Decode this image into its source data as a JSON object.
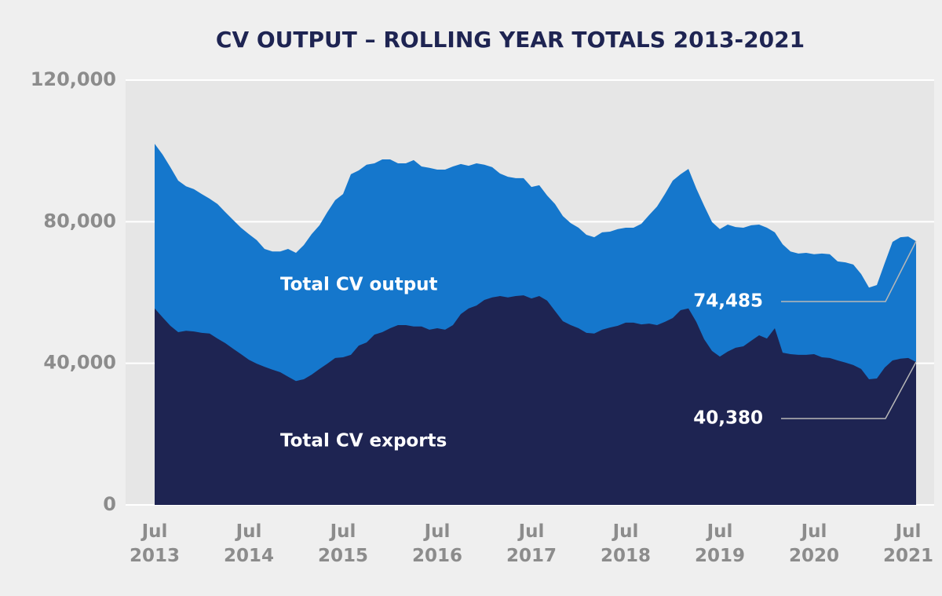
{
  "chart_data": {
    "type": "area",
    "title": "CV OUTPUT – ROLLING YEAR TOTALS 2013-2021",
    "categories": [
      "Jul 2013",
      null,
      null,
      null,
      null,
      null,
      null,
      null,
      null,
      null,
      null,
      null,
      "Jul 2014",
      null,
      null,
      null,
      null,
      null,
      null,
      null,
      null,
      null,
      null,
      null,
      "Jul 2015",
      null,
      null,
      null,
      null,
      null,
      null,
      null,
      null,
      null,
      null,
      null,
      "Jul 2016",
      null,
      null,
      null,
      null,
      null,
      null,
      null,
      null,
      null,
      null,
      null,
      "Jul 2017",
      null,
      null,
      null,
      null,
      null,
      null,
      null,
      null,
      null,
      null,
      null,
      "Jul 2018",
      null,
      null,
      null,
      null,
      null,
      null,
      null,
      null,
      null,
      null,
      null,
      "Jul 2019",
      null,
      null,
      null,
      null,
      null,
      null,
      null,
      null,
      null,
      null,
      null,
      "Jul 2020",
      null,
      null,
      null,
      null,
      null,
      null,
      null,
      null,
      null,
      null,
      null,
      "Jul 2021",
      null
    ],
    "series": [
      {
        "name": "Total CV output",
        "color": "#1577cc",
        "values": [
          102000,
          99000,
          95400,
          91600,
          90000,
          89200,
          87800,
          86500,
          85000,
          82700,
          80500,
          78300,
          76500,
          74800,
          72300,
          71600,
          71600,
          72300,
          71200,
          73400,
          76500,
          79000,
          82700,
          86100,
          87800,
          93400,
          94500,
          96100,
          96500,
          97600,
          97600,
          96500,
          96500,
          97400,
          95600,
          95200,
          94700,
          94700,
          95600,
          96300,
          95800,
          96500,
          96100,
          95400,
          93600,
          92700,
          92300,
          92300,
          89800,
          90300,
          87400,
          85000,
          81600,
          79600,
          78300,
          76300,
          75600,
          77000,
          77200,
          77900,
          78300,
          78300,
          79400,
          81900,
          84300,
          87800,
          91600,
          93400,
          94900,
          89400,
          84500,
          79900,
          77900,
          79200,
          78500,
          78300,
          79000,
          79200,
          78300,
          77000,
          73600,
          71600,
          71000,
          71200,
          70800,
          71000,
          70800,
          68800,
          68500,
          67900,
          65200,
          61400,
          62100,
          68300,
          74300,
          75600,
          75800,
          74485
        ],
        "value_labels": [
          null,
          null,
          null,
          null,
          null,
          null,
          null,
          null,
          null,
          null,
          null,
          null,
          null,
          null,
          null,
          null,
          null,
          null,
          null,
          null,
          null,
          null,
          null,
          null,
          null,
          null,
          null,
          null,
          null,
          null,
          null,
          null,
          null,
          null,
          null,
          null,
          null,
          null,
          null,
          null,
          null,
          null,
          null,
          null,
          null,
          null,
          null,
          null,
          null,
          null,
          null,
          null,
          null,
          null,
          null,
          null,
          null,
          null,
          null,
          null,
          null,
          null,
          null,
          null,
          null,
          null,
          null,
          null,
          null,
          null,
          null,
          null,
          null,
          null,
          null,
          null,
          null,
          null,
          null,
          null,
          null,
          null,
          null,
          null,
          null,
          null,
          null,
          null,
          null,
          null,
          null,
          null,
          null,
          null,
          null,
          null,
          null,
          "74,485"
        ]
      },
      {
        "name": "Total CV exports",
        "color": "#1e2452",
        "values": [
          55500,
          53000,
          50600,
          48800,
          49200,
          49000,
          48600,
          48400,
          47000,
          45700,
          44100,
          42600,
          41000,
          39900,
          39000,
          38200,
          37500,
          36200,
          35000,
          35500,
          36800,
          38400,
          39900,
          41500,
          41700,
          42400,
          45000,
          45900,
          48100,
          48800,
          49900,
          50800,
          50800,
          50400,
          50400,
          49500,
          49900,
          49500,
          50800,
          53900,
          55500,
          56300,
          57900,
          58600,
          59000,
          58600,
          59000,
          59200,
          58300,
          59000,
          57700,
          54800,
          51900,
          50800,
          49900,
          48600,
          48400,
          49500,
          50100,
          50600,
          51500,
          51500,
          51000,
          51200,
          50800,
          51700,
          52800,
          55000,
          55500,
          51700,
          46800,
          43500,
          41900,
          43300,
          44400,
          44800,
          46400,
          47900,
          47000,
          49900,
          43000,
          42600,
          42400,
          42400,
          42600,
          41700,
          41500,
          40800,
          40200,
          39500,
          38400,
          35500,
          35700,
          38800,
          40800,
          41300,
          41500,
          40380
        ],
        "value_labels": [
          null,
          null,
          null,
          null,
          null,
          null,
          null,
          null,
          null,
          null,
          null,
          null,
          null,
          null,
          null,
          null,
          null,
          null,
          null,
          null,
          null,
          null,
          null,
          null,
          null,
          null,
          null,
          null,
          null,
          null,
          null,
          null,
          null,
          null,
          null,
          null,
          null,
          null,
          null,
          null,
          null,
          null,
          null,
          null,
          null,
          null,
          null,
          null,
          null,
          null,
          null,
          null,
          null,
          null,
          null,
          null,
          null,
          null,
          null,
          null,
          null,
          null,
          null,
          null,
          null,
          null,
          null,
          null,
          null,
          null,
          null,
          null,
          null,
          null,
          null,
          null,
          null,
          null,
          null,
          null,
          null,
          null,
          null,
          null,
          null,
          null,
          null,
          null,
          null,
          null,
          null,
          null,
          null,
          null,
          null,
          null,
          null,
          "40,380"
        ]
      }
    ],
    "ylim": [
      0,
      120000
    ],
    "yticks": [
      0,
      {
        "value": 40000,
        "label": "40,000"
      },
      {
        "value": 80000,
        "label": "80,000"
      },
      {
        "value": 120000,
        "label": "120,000"
      }
    ],
    "grid": true
  }
}
